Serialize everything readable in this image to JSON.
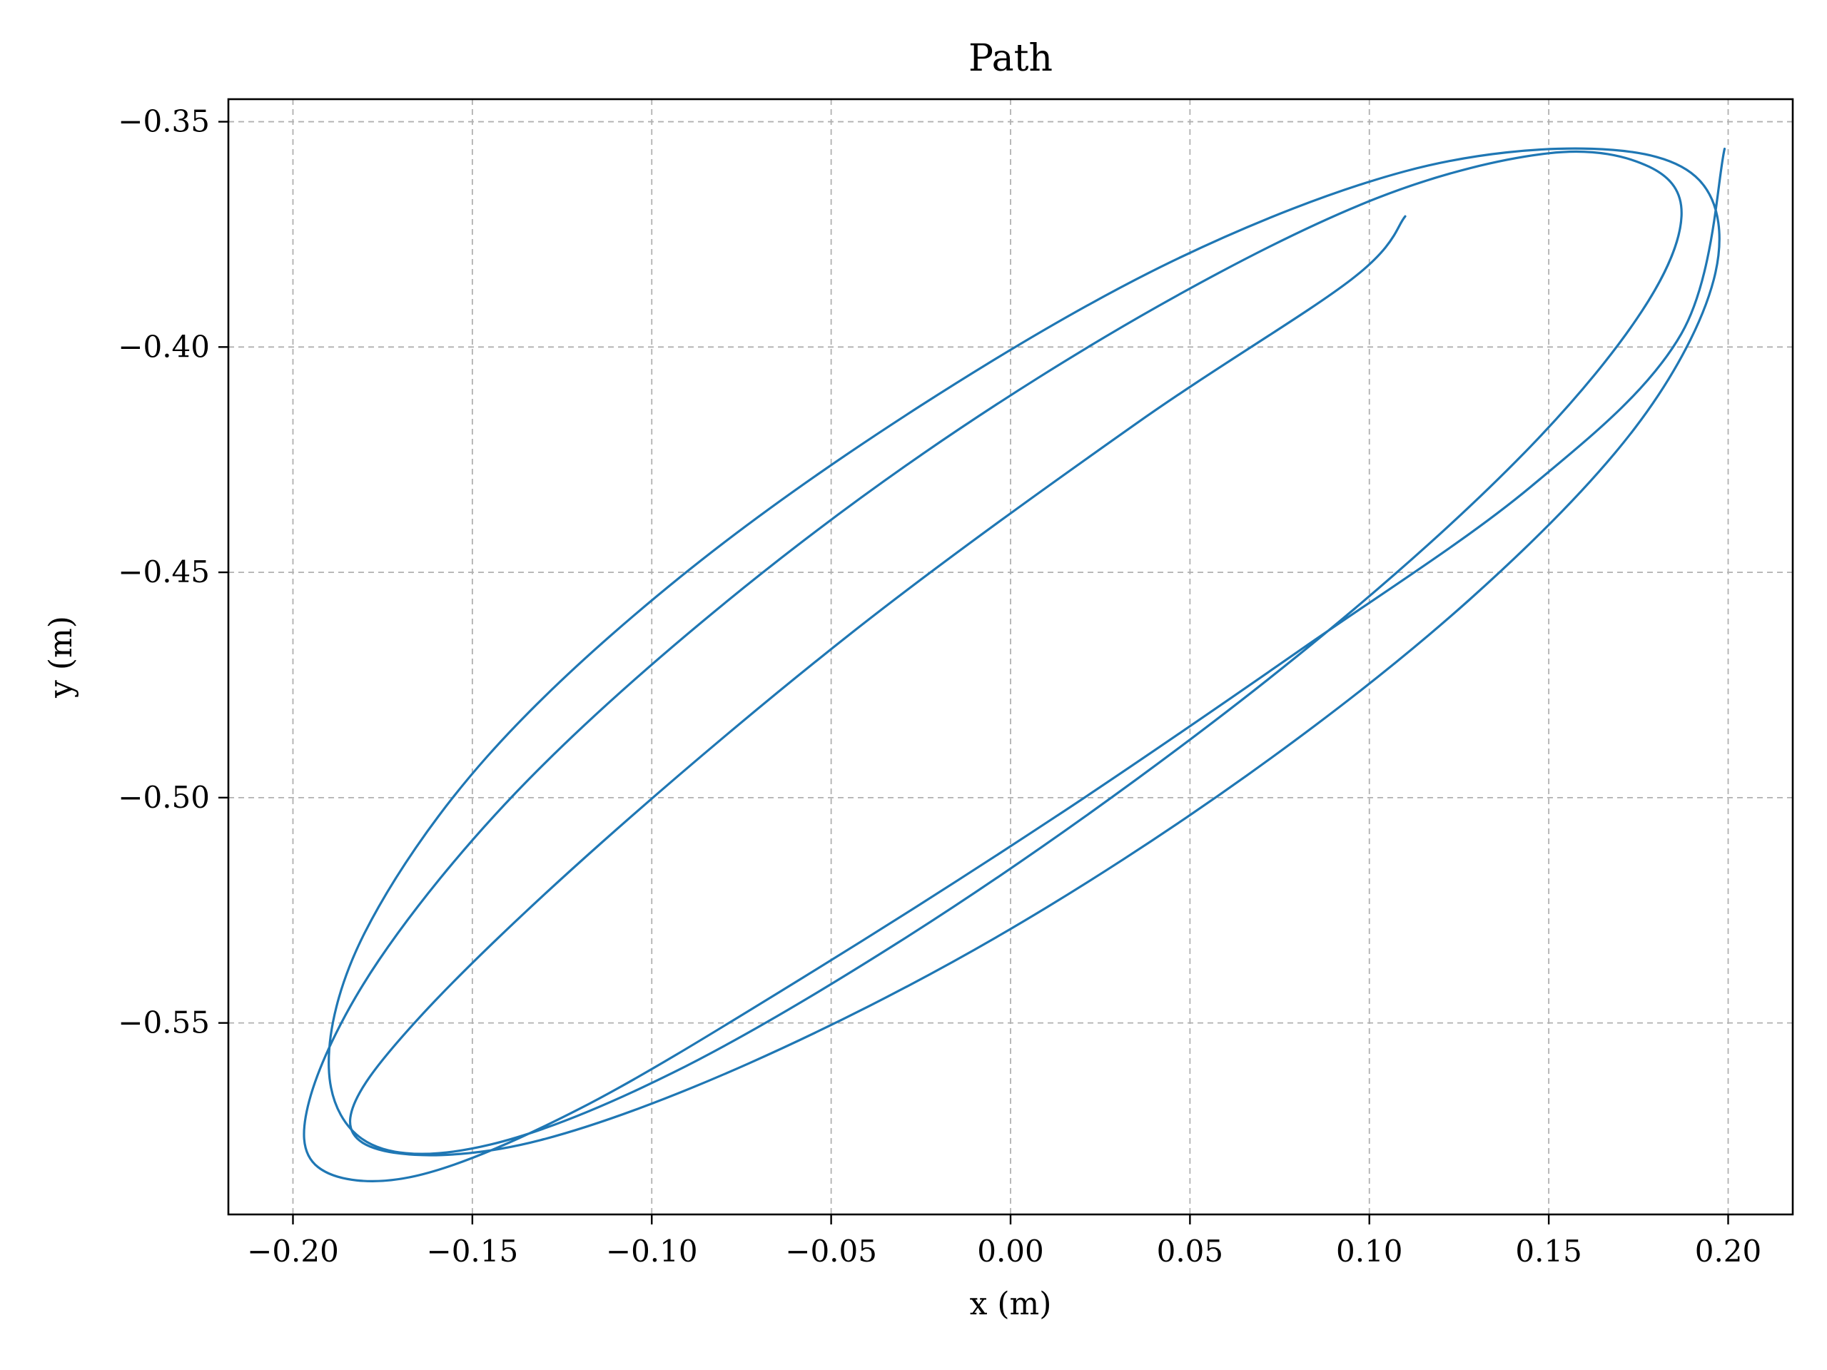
{
  "chart_data": {
    "type": "line",
    "title": "Path",
    "xlabel": "x (m)",
    "ylabel": "y (m)",
    "xlim": [
      -0.218,
      0.218
    ],
    "ylim": [
      -0.5925,
      -0.345
    ],
    "xticks": [
      -0.2,
      -0.15,
      -0.1,
      -0.05,
      0.0,
      0.05,
      0.1,
      0.15,
      0.2
    ],
    "xtick_labels": [
      "−0.20",
      "−0.15",
      "−0.10",
      "−0.05",
      "0.00",
      "0.05",
      "0.10",
      "0.15",
      "0.20"
    ],
    "yticks": [
      -0.35,
      -0.4,
      -0.45,
      -0.5,
      -0.55
    ],
    "ytick_labels": [
      "−0.35",
      "−0.40",
      "−0.45",
      "−0.50",
      "−0.55"
    ],
    "grid": true,
    "series": [
      {
        "color": "#1f77b4",
        "x": [
          0.199,
          0.187,
          0.145,
          0.083,
          0.013,
          -0.058,
          -0.12,
          -0.166,
          -0.193,
          -0.195,
          -0.176,
          -0.138,
          -0.086,
          -0.025,
          0.041,
          0.102,
          0.15,
          0.178,
          0.187,
          0.176,
          0.145,
          0.096,
          0.035,
          -0.031,
          -0.094,
          -0.145,
          -0.178,
          -0.19,
          -0.18,
          -0.146,
          -0.092,
          -0.025,
          0.045,
          0.11,
          0.162,
          0.192,
          0.196,
          0.174,
          0.128,
          0.066,
          -0.004,
          -0.073,
          -0.131,
          -0.17,
          -0.184,
          -0.165,
          -0.114,
          -0.042,
          0.035,
          0.095,
          0.11
        ],
        "y": [
          -0.356,
          -0.397,
          -0.431,
          -0.466,
          -0.504,
          -0.54,
          -0.569,
          -0.584,
          -0.582,
          -0.566,
          -0.536,
          -0.499,
          -0.461,
          -0.424,
          -0.391,
          -0.367,
          -0.357,
          -0.36,
          -0.371,
          -0.392,
          -0.422,
          -0.458,
          -0.496,
          -0.532,
          -0.561,
          -0.577,
          -0.577,
          -0.56,
          -0.53,
          -0.491,
          -0.451,
          -0.413,
          -0.381,
          -0.361,
          -0.356,
          -0.363,
          -0.385,
          -0.418,
          -0.456,
          -0.495,
          -0.531,
          -0.559,
          -0.576,
          -0.579,
          -0.571,
          -0.549,
          -0.51,
          -0.462,
          -0.417,
          -0.385,
          -0.371
        ]
      }
    ]
  }
}
